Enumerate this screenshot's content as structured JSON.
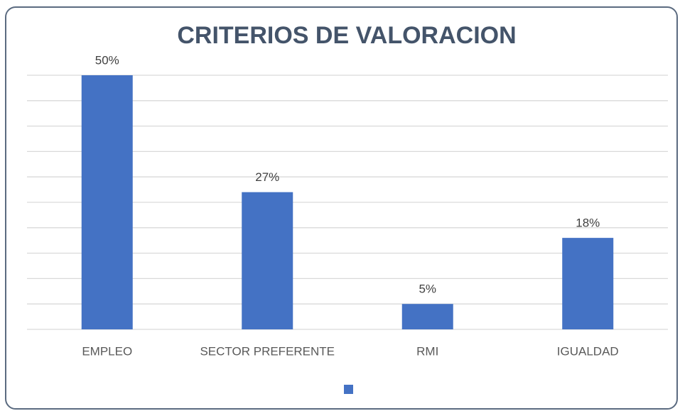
{
  "chart_data": {
    "type": "bar",
    "title": "CRITERIOS DE VALORACION",
    "categories": [
      "EMPLEO",
      "SECTOR PREFERENTE",
      "RMI",
      "IGUALDAD"
    ],
    "values": [
      50,
      27,
      5,
      18
    ],
    "value_labels": [
      "50%",
      "27%",
      "5%",
      "18%"
    ],
    "color": "#4472c4",
    "ylim": [
      0,
      50
    ],
    "yticks": [
      0,
      5,
      10,
      15,
      20,
      25,
      30,
      35,
      40,
      45,
      50
    ],
    "grid": true
  }
}
